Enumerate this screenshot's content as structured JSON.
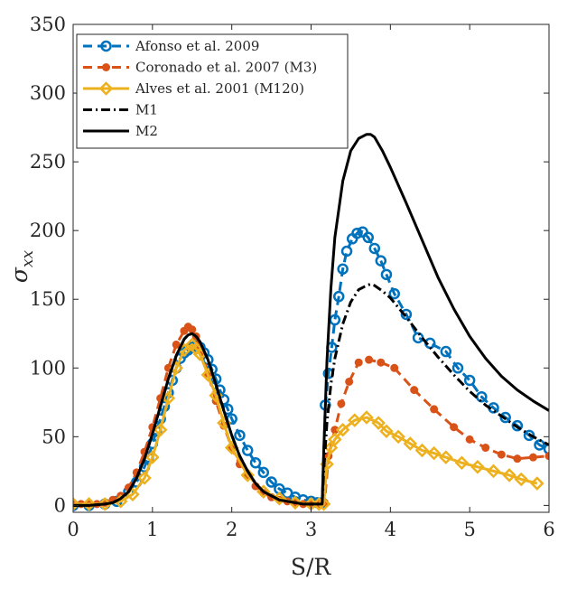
{
  "chart_data": {
    "type": "line",
    "title": "",
    "xlabel": "S/R",
    "ylabel": "σxx",
    "ylabel_symbol": "σ",
    "ylabel_subscript": "xx",
    "xlim": [
      0,
      6
    ],
    "ylim": [
      -5,
      350
    ],
    "x_ticks": [
      0,
      1,
      2,
      3,
      4,
      5,
      6
    ],
    "x_tick_labels": [
      "0",
      "1",
      "2",
      "3",
      "4",
      "5",
      "6"
    ],
    "y_ticks": [
      0,
      50,
      100,
      150,
      200,
      250,
      300,
      350
    ],
    "y_tick_labels": [
      "0",
      "50",
      "100",
      "150",
      "200",
      "250",
      "300",
      "350"
    ],
    "grid": false,
    "legend_position": "top-left",
    "series": [
      {
        "name": "Afonso et al. 2009",
        "color": "#0072BD",
        "line": "dashed",
        "marker": "circle-open",
        "x": [
          0.0,
          0.2,
          0.4,
          0.55,
          0.7,
          0.8,
          0.9,
          0.95,
          1.0,
          1.05,
          1.1,
          1.15,
          1.2,
          1.25,
          1.3,
          1.35,
          1.4,
          1.45,
          1.5,
          1.55,
          1.6,
          1.65,
          1.7,
          1.75,
          1.8,
          1.85,
          1.9,
          1.95,
          2.0,
          2.1,
          2.2,
          2.3,
          2.4,
          2.5,
          2.6,
          2.7,
          2.8,
          2.9,
          3.0,
          3.08,
          3.14,
          3.18,
          3.22,
          3.26,
          3.3,
          3.35,
          3.4,
          3.45,
          3.52,
          3.58,
          3.65,
          3.72,
          3.8,
          3.88,
          3.95,
          4.05,
          4.2,
          4.35,
          4.5,
          4.7,
          4.85,
          5.0,
          5.15,
          5.3,
          5.45,
          5.6,
          5.75,
          5.88,
          6.0
        ],
        "y": [
          0,
          0,
          1,
          3,
          10,
          17,
          28,
          35,
          45,
          54,
          63,
          72,
          82,
          91,
          100,
          107,
          111,
          113,
          115,
          116,
          115,
          111,
          106,
          99,
          92,
          84,
          77,
          70,
          63,
          51,
          40,
          31,
          24,
          17,
          12,
          9,
          6,
          4,
          3,
          2,
          2,
          73,
          96,
          115,
          135,
          152,
          172,
          185,
          194,
          198,
          199,
          195,
          187,
          178,
          168,
          154,
          139,
          122,
          118,
          112,
          100,
          91,
          79,
          71,
          64,
          58,
          51,
          44,
          41
        ]
      },
      {
        "name": "Coronado et al. 2007 (M3)",
        "color": "#D95319",
        "line": "dashed",
        "marker": "dot",
        "x": [
          0.0,
          0.1,
          0.2,
          0.3,
          0.4,
          0.5,
          0.6,
          0.7,
          0.8,
          0.9,
          1.0,
          1.1,
          1.2,
          1.3,
          1.4,
          1.45,
          1.5,
          1.55,
          1.6,
          1.7,
          1.8,
          1.9,
          2.0,
          2.1,
          2.2,
          2.3,
          2.4,
          2.5,
          2.6,
          2.7,
          2.8,
          2.9,
          3.0,
          3.1,
          3.17,
          3.22,
          3.3,
          3.38,
          3.48,
          3.6,
          3.73,
          3.88,
          4.05,
          4.3,
          4.55,
          4.8,
          5.0,
          5.2,
          5.4,
          5.6,
          5.8,
          6.0
        ],
        "y": [
          1,
          1,
          1,
          1,
          2,
          4,
          7,
          13,
          24,
          39,
          57,
          78,
          100,
          117,
          127,
          130,
          128,
          123,
          115,
          96,
          76,
          58,
          42,
          30,
          21,
          14,
          9,
          6,
          4,
          3,
          2,
          1,
          1,
          1,
          2,
          36,
          55,
          74,
          90,
          104,
          106,
          104,
          100,
          84,
          70,
          57,
          48,
          42,
          37,
          34,
          35,
          36
        ]
      },
      {
        "name": "Alves et al. 2001 (M120)",
        "color": "#EDB120",
        "line": "solid",
        "marker": "diamond-open",
        "x": [
          0.0,
          0.2,
          0.4,
          0.6,
          0.75,
          0.9,
          1.0,
          1.1,
          1.2,
          1.3,
          1.4,
          1.5,
          1.55,
          1.6,
          1.7,
          1.8,
          1.9,
          2.0,
          2.2,
          2.4,
          2.6,
          2.8,
          3.0,
          3.1,
          3.16,
          3.2,
          3.25,
          3.3,
          3.4,
          3.55,
          3.7,
          3.85,
          3.95,
          4.1,
          4.25,
          4.4,
          4.55,
          4.7,
          4.9,
          5.1,
          5.3,
          5.5,
          5.65,
          5.85
        ],
        "y": [
          1,
          1,
          1,
          3,
          8,
          20,
          35,
          55,
          78,
          100,
          113,
          117,
          114,
          110,
          95,
          80,
          60,
          42,
          22,
          10,
          5,
          2,
          1,
          1,
          1,
          30,
          42,
          48,
          55,
          62,
          64,
          60,
          54,
          50,
          45,
          40,
          38,
          35,
          31,
          28,
          25,
          22,
          19,
          16
        ]
      },
      {
        "name": "M1",
        "color": "#000000",
        "line": "dashdot",
        "marker": "none",
        "x": [
          0.0,
          0.2,
          0.4,
          0.5,
          0.6,
          0.7,
          0.8,
          0.9,
          1.0,
          1.1,
          1.2,
          1.3,
          1.4,
          1.45,
          1.5,
          1.55,
          1.6,
          1.7,
          1.8,
          1.9,
          2.0,
          2.1,
          2.2,
          2.3,
          2.4,
          2.5,
          2.6,
          2.7,
          2.8,
          2.9,
          3.0,
          3.1,
          3.14,
          3.16,
          3.2,
          3.25,
          3.3,
          3.4,
          3.5,
          3.6,
          3.7,
          3.75,
          3.8,
          3.9,
          4.0,
          4.2,
          4.4,
          4.6,
          4.8,
          5.0,
          5.2,
          5.4,
          5.6,
          5.8,
          6.0
        ],
        "y": [
          0,
          0,
          1,
          2,
          5,
          10,
          20,
          34,
          52,
          72,
          92,
          109,
          121,
          124,
          125,
          123,
          119,
          106,
          88,
          69,
          51,
          36,
          25,
          16,
          10,
          7,
          4,
          3,
          2,
          1,
          1,
          1,
          1,
          25,
          60,
          88,
          107,
          132,
          148,
          157,
          160,
          161,
          160,
          156,
          151,
          137,
          122,
          108,
          95,
          83,
          73,
          65,
          57,
          50,
          44
        ]
      },
      {
        "name": "M2",
        "color": "#000000",
        "line": "solid",
        "marker": "none",
        "x": [
          0.0,
          0.2,
          0.4,
          0.5,
          0.6,
          0.7,
          0.8,
          0.9,
          1.0,
          1.1,
          1.2,
          1.3,
          1.4,
          1.45,
          1.5,
          1.55,
          1.6,
          1.7,
          1.8,
          1.9,
          2.0,
          2.1,
          2.2,
          2.3,
          2.4,
          2.5,
          2.6,
          2.7,
          2.8,
          2.9,
          3.0,
          3.1,
          3.14,
          3.16,
          3.2,
          3.25,
          3.3,
          3.4,
          3.5,
          3.6,
          3.7,
          3.75,
          3.8,
          3.9,
          4.0,
          4.2,
          4.4,
          4.6,
          4.8,
          5.0,
          5.2,
          5.4,
          5.6,
          5.8,
          6.0
        ],
        "y": [
          0,
          0,
          1,
          2,
          5,
          10,
          20,
          34,
          52,
          72,
          92,
          109,
          121,
          124,
          125,
          123,
          119,
          106,
          88,
          69,
          51,
          36,
          25,
          16,
          10,
          7,
          4,
          3,
          2,
          1,
          1,
          1,
          1,
          40,
          105,
          158,
          195,
          236,
          258,
          267,
          270,
          270,
          268,
          258,
          246,
          220,
          193,
          166,
          143,
          123,
          107,
          94,
          84,
          76,
          69
        ]
      }
    ]
  }
}
